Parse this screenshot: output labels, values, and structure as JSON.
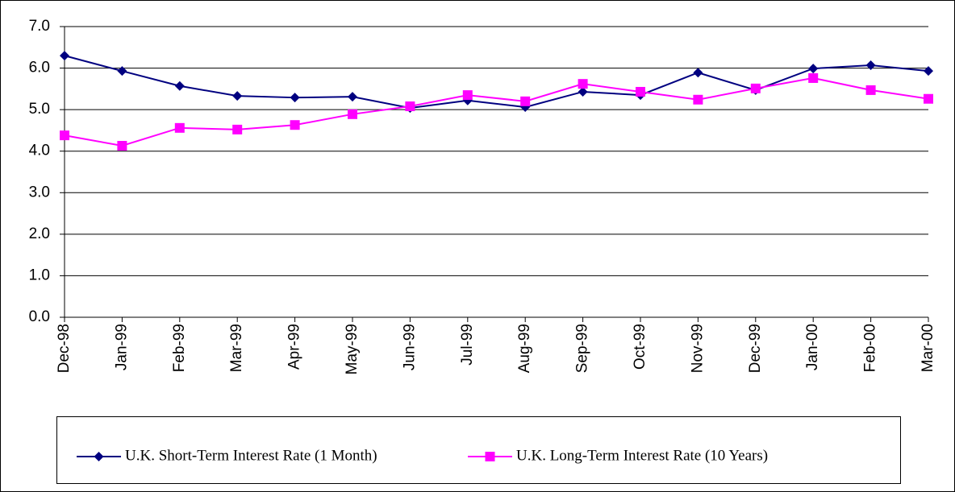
{
  "chart_data": {
    "type": "line",
    "categories": [
      "Dec-98",
      "Jan-99",
      "Feb-99",
      "Mar-99",
      "Apr-99",
      "May-99",
      "Jun-99",
      "Jul-99",
      "Aug-99",
      "Sep-99",
      "Oct-99",
      "Nov-99",
      "Dec-99",
      "Jan-00",
      "Feb-00",
      "Mar-00"
    ],
    "series": [
      {
        "name": "U.K. Short-Term Interest Rate (1 Month)",
        "color": "#000080",
        "marker": "diamond",
        "values": [
          6.3,
          5.93,
          5.57,
          5.33,
          5.29,
          5.31,
          5.04,
          5.22,
          5.06,
          5.43,
          5.35,
          5.89,
          5.47,
          5.99,
          6.07,
          5.93
        ]
      },
      {
        "name": "U.K. Long-Term Interest Rate (10 Years)",
        "color": "#ff00ff",
        "marker": "square",
        "values": [
          4.38,
          4.13,
          4.56,
          4.52,
          4.63,
          4.89,
          5.08,
          5.35,
          5.2,
          5.62,
          5.43,
          5.24,
          5.51,
          5.76,
          5.47,
          5.26
        ]
      }
    ],
    "ylim": [
      0,
      7
    ],
    "yticks": [
      {
        "value": 0,
        "label": "0.0"
      },
      {
        "value": 1,
        "label": "1.0"
      },
      {
        "value": 2,
        "label": "2.0"
      },
      {
        "value": 3,
        "label": "3.0"
      },
      {
        "value": 4,
        "label": "4.0"
      },
      {
        "value": 5,
        "label": "5.0"
      },
      {
        "value": 6,
        "label": "6.0"
      },
      {
        "value": 7,
        "label": "7.0"
      }
    ],
    "grid": true
  }
}
